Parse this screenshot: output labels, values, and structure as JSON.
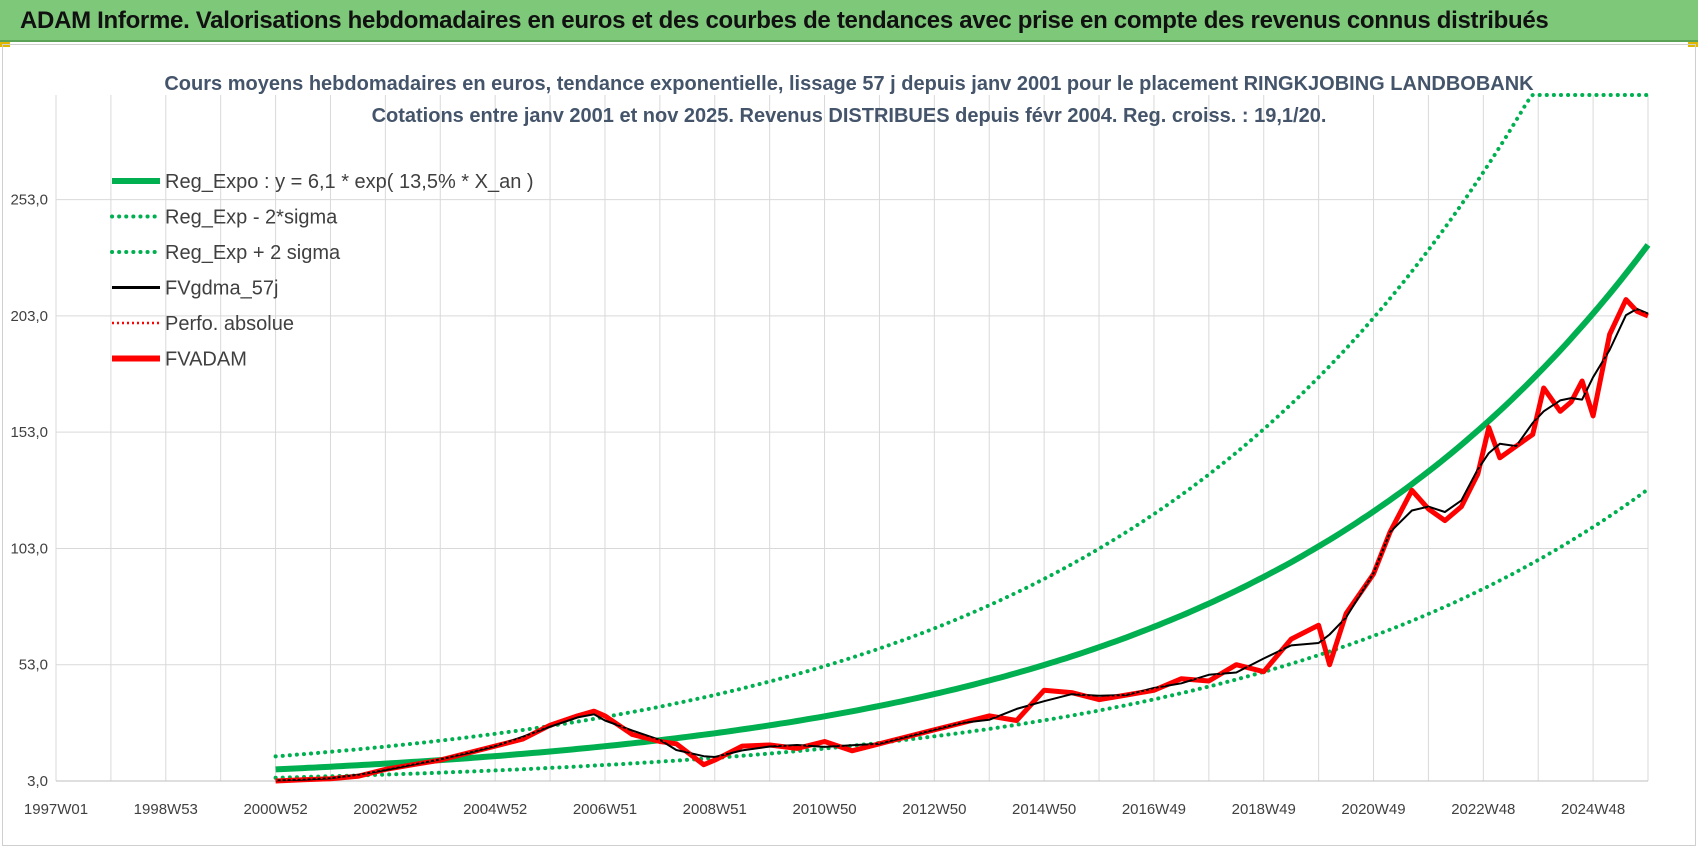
{
  "banner": {
    "title": "ADAM Informe. Valorisations hebdomadaires en euros et des courbes de tendances avec prise en compte des revenus connus distribués"
  },
  "colors": {
    "banner_bg": "#7ec87a",
    "reg_green": "#00b050",
    "fv_black": "#000000",
    "fvadam_red": "#ff0000",
    "grid": "#d9d9d9",
    "title_text": "#44546a"
  },
  "chart_data": {
    "type": "line",
    "title_line1": "Cours moyens hebdomadaires en euros, tendance exponentielle, lissage 57 j depuis janv 2001 pour le placement RINGKJOBING LANDBOBANK",
    "title_line2": "Cotations entre janv 2001 et nov 2025. Revenus DISTRIBUES depuis févr 2004. Reg. croiss. : 19,1/20.",
    "xlabel": "",
    "ylabel": "",
    "x_range": [
      1997.0,
      2026.0
    ],
    "ylim": [
      3,
      298
    ],
    "y_ticks": [
      3,
      53,
      103,
      153,
      203,
      253
    ],
    "y_tick_labels": [
      "3,0",
      "53,0",
      "103,0",
      "153,0",
      "203,0",
      "253,0"
    ],
    "x_ticks": [
      1997.0,
      1999.0,
      2001.0,
      2003.0,
      2005.0,
      2007.0,
      2009.0,
      2011.0,
      2013.0,
      2015.0,
      2017.0,
      2019.0,
      2021.0,
      2023.0,
      2025.0
    ],
    "x_tick_labels": [
      "1997W01",
      "1998W53",
      "2000W52",
      "2002W52",
      "2004W52",
      "2006W51",
      "2008W51",
      "2010W50",
      "2012W50",
      "2014W50",
      "2016W49",
      "2018W49",
      "2020W49",
      "2022W48",
      "2024W48"
    ],
    "grid": true,
    "legend_position": "top-left",
    "regression": {
      "formula": "y = 6,1 * exp( 13,5% * X_an )",
      "a": 6.1,
      "rate": 0.135,
      "x_start": 2001.0,
      "x_end": 2026.0,
      "sigma_factor_low": 0.55,
      "sigma_factor_high": 1.7
    },
    "series": [
      {
        "name": "Reg_Expo : y = 6,1 * exp( 13,5% *  X_an )",
        "style": "solid-thick",
        "color": "#00b050"
      },
      {
        "name": "Reg_Exp - 2*sigma",
        "style": "dotted",
        "color": "#00b050"
      },
      {
        "name": "Reg_Exp + 2 sigma",
        "style": "dotted",
        "color": "#00b050"
      },
      {
        "name": "FVgdma_57j",
        "style": "solid",
        "color": "#000000"
      },
      {
        "name": "Perfo. absolue",
        "style": "dotted-thin",
        "color": "#ff0000"
      },
      {
        "name": "FVADAM",
        "style": "solid-thick",
        "color": "#ff0000"
      }
    ],
    "fvadam_points": [
      [
        2001.0,
        3.0
      ],
      [
        2001.5,
        3.5
      ],
      [
        2002.0,
        4.0
      ],
      [
        2002.5,
        5.0
      ],
      [
        2003.0,
        8.0
      ],
      [
        2003.5,
        10.0
      ],
      [
        2004.0,
        12.0
      ],
      [
        2004.5,
        15.0
      ],
      [
        2005.0,
        18.0
      ],
      [
        2005.5,
        21.0
      ],
      [
        2006.0,
        27.0
      ],
      [
        2006.5,
        31.0
      ],
      [
        2006.8,
        33.0
      ],
      [
        2007.0,
        31.0
      ],
      [
        2007.5,
        23.0
      ],
      [
        2008.0,
        20.0
      ],
      [
        2008.3,
        19.0
      ],
      [
        2008.8,
        10.0
      ],
      [
        2009.0,
        12.0
      ],
      [
        2009.5,
        18.0
      ],
      [
        2010.0,
        18.5
      ],
      [
        2010.5,
        17.0
      ],
      [
        2011.0,
        20.0
      ],
      [
        2011.5,
        16.0
      ],
      [
        2012.0,
        19.0
      ],
      [
        2012.5,
        22.0
      ],
      [
        2013.0,
        25.0
      ],
      [
        2013.5,
        28.0
      ],
      [
        2014.0,
        31.0
      ],
      [
        2014.5,
        29.0
      ],
      [
        2015.0,
        42.0
      ],
      [
        2015.5,
        41.0
      ],
      [
        2016.0,
        38.0
      ],
      [
        2016.5,
        40.0
      ],
      [
        2017.0,
        42.0
      ],
      [
        2017.5,
        47.0
      ],
      [
        2018.0,
        46.0
      ],
      [
        2018.5,
        53.0
      ],
      [
        2019.0,
        50.0
      ],
      [
        2019.5,
        64.0
      ],
      [
        2020.0,
        70.0
      ],
      [
        2020.2,
        53.0
      ],
      [
        2020.5,
        75.0
      ],
      [
        2021.0,
        92.0
      ],
      [
        2021.3,
        110.0
      ],
      [
        2021.7,
        128.0
      ],
      [
        2022.0,
        120.0
      ],
      [
        2022.3,
        115.0
      ],
      [
        2022.6,
        121.0
      ],
      [
        2022.9,
        135.0
      ],
      [
        2023.1,
        155.0
      ],
      [
        2023.3,
        142.0
      ],
      [
        2023.6,
        147.0
      ],
      [
        2023.9,
        152.0
      ],
      [
        2024.1,
        172.0
      ],
      [
        2024.4,
        162.0
      ],
      [
        2024.6,
        166.0
      ],
      [
        2024.8,
        175.0
      ],
      [
        2025.0,
        160.0
      ],
      [
        2025.3,
        195.0
      ],
      [
        2025.6,
        210.0
      ],
      [
        2025.8,
        205.0
      ],
      [
        2026.0,
        203.0
      ]
    ]
  }
}
